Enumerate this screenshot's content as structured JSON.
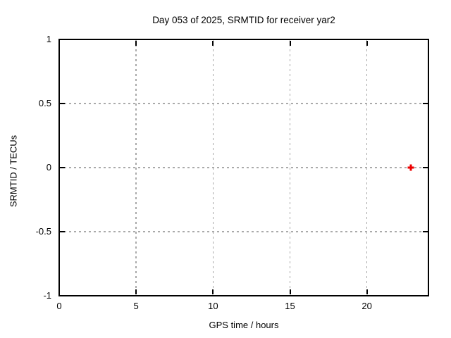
{
  "chart_data": {
    "type": "scatter",
    "title": "Day 053 of 2025, SRMTID for receiver yar2",
    "xlabel": "GPS time / hours",
    "ylabel": "SRMTID / TECUs",
    "xlim": [
      0,
      24
    ],
    "ylim": [
      -1,
      1
    ],
    "xticks": [
      0,
      5,
      10,
      15,
      20
    ],
    "yticks": [
      -1,
      -0.5,
      0,
      0.5,
      1
    ],
    "grid": true,
    "legend": "none",
    "series": [
      {
        "name": "SRMTID",
        "marker": "plus",
        "color": "#ee0000",
        "points": [
          {
            "x": 22.85,
            "y": 0
          }
        ]
      }
    ],
    "colors": {
      "background": "#ffffff",
      "border": "#000000",
      "grid": "#aaaaaa",
      "text": "#000000"
    }
  }
}
